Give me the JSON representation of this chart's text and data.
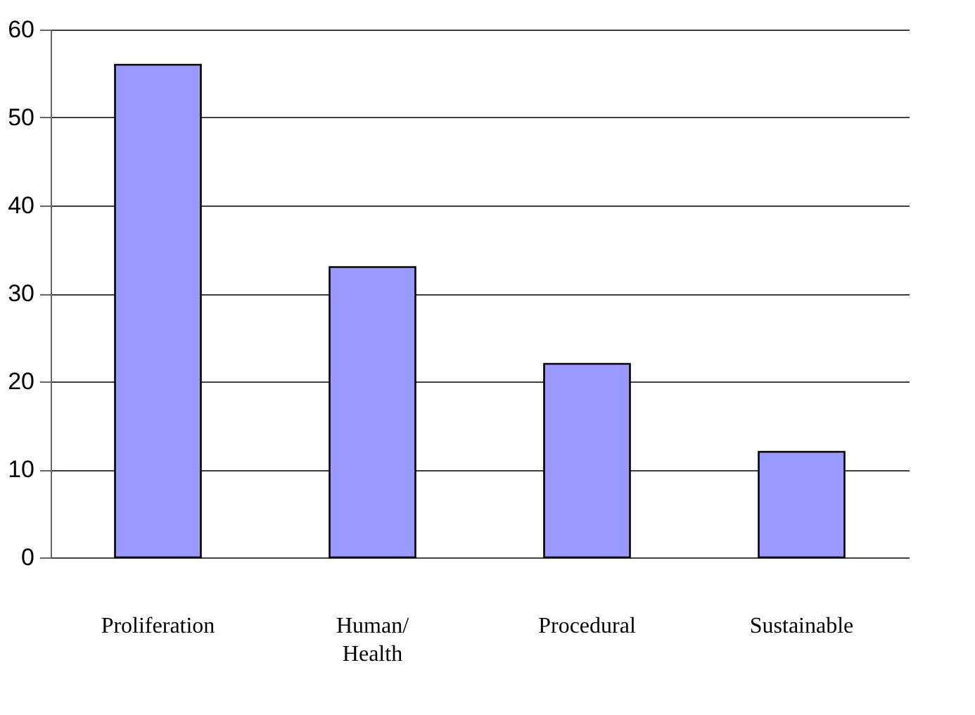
{
  "chart_data": {
    "type": "bar",
    "categories": [
      "Proliferation",
      "Human/ Health",
      "Procedural",
      "Sustainable"
    ],
    "values": [
      56,
      33,
      22,
      12
    ],
    "color": "#9999ff",
    "ylim": [
      0,
      60
    ],
    "yticks": [
      0,
      10,
      20,
      30,
      40,
      50,
      60
    ],
    "grid": "y"
  }
}
